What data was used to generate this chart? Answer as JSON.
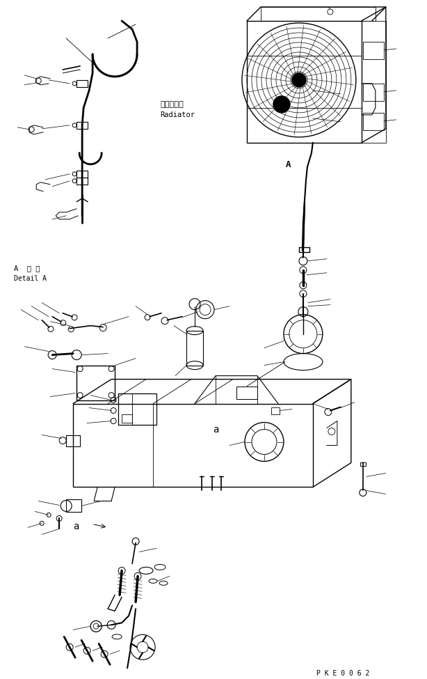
{
  "bg_color": "#ffffff",
  "fig_width": 6.14,
  "fig_height": 9.75,
  "dpi": 100,
  "label_radiator_ja": "ラジエータ",
  "label_radiator_en": "Radiator",
  "label_detail_ja": "A  詳 細",
  "label_detail_en": "Detail A",
  "label_A": "A",
  "label_a": "a",
  "label_pke": "P K E 0 0 6 2",
  "lc": "#000000",
  "lw": 0.7
}
